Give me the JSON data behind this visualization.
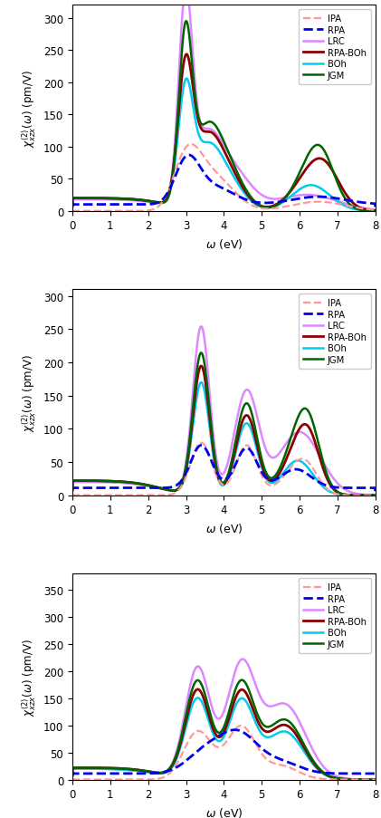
{
  "colors": {
    "IPA": "#FF9999",
    "RPA": "#0000EE",
    "LRC": "#DD88FF",
    "RPA-BOh": "#8B0000",
    "BOh": "#00CCEE",
    "JGM": "#006600"
  },
  "linestyles": {
    "IPA": "--",
    "RPA": "--",
    "LRC": "-",
    "RPA-BOh": "-",
    "BOh": "-",
    "JGM": "-"
  },
  "linewidths": {
    "IPA": 1.6,
    "RPA": 2.0,
    "LRC": 1.8,
    "RPA-BOh": 2.0,
    "BOh": 1.8,
    "JGM": 1.8
  },
  "panel1": {
    "ylim": [
      0,
      320
    ],
    "yticks": [
      0,
      50,
      100,
      150,
      200,
      250,
      300
    ],
    "ylabel": "$\\chi^{(2)}_{xzx}(\\omega)$ (pm/V)"
  },
  "panel2": {
    "ylim": [
      0,
      310
    ],
    "yticks": [
      0,
      50,
      100,
      150,
      200,
      250,
      300
    ],
    "ylabel": "$\\chi^{(2)}_{xzx}(\\omega)$ (pm/V)"
  },
  "panel3": {
    "ylim": [
      0,
      380
    ],
    "yticks": [
      0,
      50,
      100,
      150,
      200,
      250,
      300,
      350
    ],
    "ylabel": "$\\chi^{(2)}_{xzx}(\\omega)$ (pm/V)"
  },
  "xlabel": "$\\omega$ (eV)",
  "xlim": [
    0,
    8
  ],
  "xticks": [
    0,
    1,
    2,
    3,
    4,
    5,
    6,
    7,
    8
  ],
  "legend_labels": [
    "IPA",
    "RPA",
    "LRC",
    "RPA-BOh",
    "BOh",
    "JGM"
  ],
  "figsize": [
    4.21,
    9.04
  ],
  "dpi": 100
}
